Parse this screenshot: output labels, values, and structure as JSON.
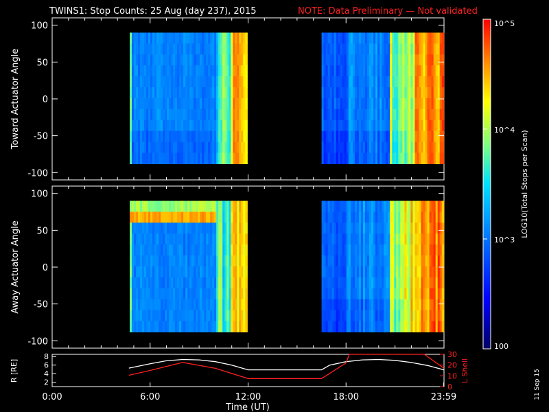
{
  "title": "TWINS1: Stop Counts: 25 Aug (day 237), 2015",
  "note": "NOTE: Data Preliminary — Not validated",
  "stamp": "11 Sep 15",
  "colors": {
    "note": "#ff2020",
    "ephem_r": "#ffffff",
    "ephem_l": "#ff2020"
  },
  "chart_data": [
    {
      "type": "heatmap",
      "panel": "toward",
      "ylabel": "Toward Actuator Angle",
      "ylim": [
        -110,
        110
      ],
      "yticks": [
        100,
        50,
        0,
        -50,
        -100
      ],
      "xlim": [
        0,
        24
      ],
      "data_y_range": [
        -88,
        90
      ],
      "segments": [
        {
          "start_h": 4.75,
          "end_h": 11.95
        },
        {
          "start_h": 16.5,
          "end_h": 23.99
        }
      ]
    },
    {
      "type": "heatmap",
      "panel": "away",
      "ylabel": "Away Actuator Angle",
      "ylim": [
        -110,
        110
      ],
      "yticks": [
        100,
        50,
        0,
        -50,
        -100
      ],
      "xlim": [
        0,
        24
      ],
      "data_y_range": [
        -88,
        90
      ],
      "segments": [
        {
          "start_h": 4.75,
          "end_h": 11.95
        },
        {
          "start_h": 16.5,
          "end_h": 23.99
        }
      ],
      "hot_band_y": [
        65,
        82
      ]
    },
    {
      "type": "line",
      "panel": "ephemeris",
      "ylabel": "R [RE]",
      "ylim": [
        1,
        8.5
      ],
      "yticks": [
        8,
        6,
        4,
        2
      ],
      "ylabel_right": "L Shell",
      "ylim_right": [
        0,
        30
      ],
      "yticks_right": [
        30,
        20,
        10,
        0
      ],
      "xlim": [
        0,
        24
      ],
      "xlabel": "Time (UT)",
      "xtick_labels": [
        "0:00",
        "6:00",
        "12:00",
        "18:00",
        "23:59"
      ],
      "xtick_values": [
        0,
        6,
        12,
        18,
        23.98
      ],
      "series": [
        {
          "name": "R",
          "axis": "left",
          "x": [
            4.7,
            6,
            7,
            8,
            9,
            10,
            11,
            12,
            13,
            14,
            15,
            16,
            16.5,
            17,
            18,
            19,
            20,
            21,
            22,
            23,
            24
          ],
          "y": [
            5.3,
            6.3,
            7.0,
            7.3,
            7.2,
            6.8,
            6.0,
            4.9,
            4.9,
            4.9,
            4.9,
            4.9,
            4.9,
            6.0,
            6.8,
            7.2,
            7.3,
            7.1,
            6.6,
            5.9,
            4.9
          ]
        },
        {
          "name": "L Shell",
          "axis": "right",
          "x": [
            4.7,
            6,
            8,
            10,
            12,
            16.5,
            18,
            18.2,
            22.8,
            24
          ],
          "y": [
            10.5,
            15,
            22.5,
            17,
            7.5,
            7.5,
            22,
            30,
            30,
            17
          ]
        }
      ]
    }
  ],
  "colorbar": {
    "label": "LOG10(Total Stops per Scan)",
    "range": [
      100,
      100000
    ],
    "scale": "log",
    "tick_labels": [
      "100",
      "10^3",
      "10^4",
      "10^5"
    ],
    "tick_values": [
      100,
      1000,
      10000,
      100000
    ]
  }
}
